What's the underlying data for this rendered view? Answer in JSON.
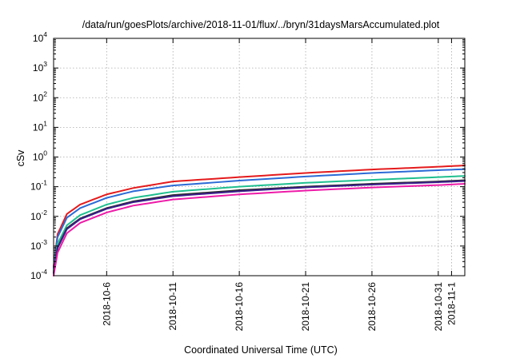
{
  "chart_data": {
    "type": "line",
    "title": "/data/run/goesPlots/archive/2018-11-01/flux/../bryn/31daysMarsAccumulated.plot",
    "xlabel": "Coordinated Universal Time (UTC)",
    "ylabel": "cSv",
    "y_scale": "log",
    "ylim": [
      0.0001,
      10000
    ],
    "xlim": [
      "2018-10-02",
      "2018-11-02"
    ],
    "grid": true,
    "legend": "none",
    "x_ticks": [
      "2018-10-6",
      "2018-10-11",
      "2018-10-16",
      "2018-10-21",
      "2018-10-26",
      "2018-10-31",
      "2018-11-1"
    ],
    "y_ticks": [
      {
        "value": 0.0001,
        "base": "10",
        "exp": "-4"
      },
      {
        "value": 0.001,
        "base": "10",
        "exp": "-3"
      },
      {
        "value": 0.01,
        "base": "10",
        "exp": "-2"
      },
      {
        "value": 0.1,
        "base": "10",
        "exp": "-1"
      },
      {
        "value": 1,
        "base": "10",
        "exp": "0"
      },
      {
        "value": 10,
        "base": "10",
        "exp": "1"
      },
      {
        "value": 100,
        "base": "10",
        "exp": "2"
      },
      {
        "value": 1000,
        "base": "10",
        "exp": "3"
      },
      {
        "value": 10000,
        "base": "10",
        "exp": "4"
      }
    ],
    "series": [
      {
        "color": "#e41a1c",
        "values": [
          [
            "2018-10-02",
            0.0002
          ],
          [
            "2018-10-02.3",
            0.0025
          ],
          [
            "2018-10-03",
            0.012
          ],
          [
            "2018-10-04",
            0.025
          ],
          [
            "2018-10-06",
            0.055
          ],
          [
            "2018-10-08",
            0.09
          ],
          [
            "2018-10-11",
            0.15
          ],
          [
            "2018-10-16",
            0.21
          ],
          [
            "2018-10-21",
            0.29
          ],
          [
            "2018-10-26",
            0.38
          ],
          [
            "2018-10-31",
            0.47
          ],
          [
            "2018-11-02",
            0.52
          ]
        ]
      },
      {
        "color": "#2b6ad6",
        "values": [
          [
            "2018-10-02",
            0.00018
          ],
          [
            "2018-10-02.3",
            0.002
          ],
          [
            "2018-10-03",
            0.009
          ],
          [
            "2018-10-04",
            0.019
          ],
          [
            "2018-10-06",
            0.042
          ],
          [
            "2018-10-08",
            0.07
          ],
          [
            "2018-10-11",
            0.11
          ],
          [
            "2018-10-16",
            0.16
          ],
          [
            "2018-10-21",
            0.22
          ],
          [
            "2018-10-26",
            0.29
          ],
          [
            "2018-10-31",
            0.36
          ],
          [
            "2018-11-02",
            0.39
          ]
        ]
      },
      {
        "color": "#1fbf8f",
        "values": [
          [
            "2018-10-02",
            0.00015
          ],
          [
            "2018-10-02.3",
            0.0012
          ],
          [
            "2018-10-03",
            0.005
          ],
          [
            "2018-10-04",
            0.011
          ],
          [
            "2018-10-06",
            0.025
          ],
          [
            "2018-10-08",
            0.042
          ],
          [
            "2018-10-11",
            0.068
          ],
          [
            "2018-10-16",
            0.1
          ],
          [
            "2018-10-21",
            0.135
          ],
          [
            "2018-10-26",
            0.17
          ],
          [
            "2018-10-31",
            0.21
          ],
          [
            "2018-11-02",
            0.23
          ]
        ]
      },
      {
        "color": "#2a2a2a",
        "values": [
          [
            "2018-10-02",
            0.00013
          ],
          [
            "2018-10-02.3",
            0.0009
          ],
          [
            "2018-10-03",
            0.004
          ],
          [
            "2018-10-04",
            0.0085
          ],
          [
            "2018-10-06",
            0.019
          ],
          [
            "2018-10-08",
            0.032
          ],
          [
            "2018-10-11",
            0.052
          ],
          [
            "2018-10-16",
            0.076
          ],
          [
            "2018-10-21",
            0.1
          ],
          [
            "2018-10-26",
            0.125
          ],
          [
            "2018-10-31",
            0.15
          ],
          [
            "2018-11-02",
            0.165
          ]
        ]
      },
      {
        "color": "#3b1f8c",
        "values": [
          [
            "2018-10-02",
            0.00012
          ],
          [
            "2018-10-02.3",
            0.00085
          ],
          [
            "2018-10-03",
            0.0037
          ],
          [
            "2018-10-04",
            0.008
          ],
          [
            "2018-10-06",
            0.018
          ],
          [
            "2018-10-08",
            0.03
          ],
          [
            "2018-10-11",
            0.048
          ],
          [
            "2018-10-16",
            0.07
          ],
          [
            "2018-10-21",
            0.095
          ],
          [
            "2018-10-26",
            0.118
          ],
          [
            "2018-10-31",
            0.142
          ],
          [
            "2018-11-02",
            0.155
          ]
        ]
      },
      {
        "color": "#ee1aa8",
        "values": [
          [
            "2018-10-02",
            0.0001
          ],
          [
            "2018-10-02.3",
            0.0006
          ],
          [
            "2018-10-03",
            0.0027
          ],
          [
            "2018-10-04",
            0.006
          ],
          [
            "2018-10-06",
            0.0135
          ],
          [
            "2018-10-08",
            0.023
          ],
          [
            "2018-10-11",
            0.037
          ],
          [
            "2018-10-16",
            0.055
          ],
          [
            "2018-10-21",
            0.074
          ],
          [
            "2018-10-26",
            0.094
          ],
          [
            "2018-10-31",
            0.113
          ],
          [
            "2018-11-02",
            0.125
          ]
        ]
      }
    ]
  }
}
